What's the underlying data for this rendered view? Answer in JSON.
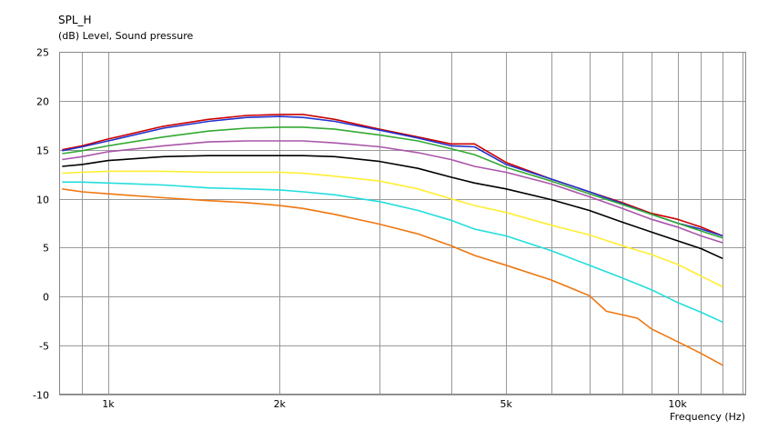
{
  "chart_data": {
    "type": "line",
    "title": "SPL_H",
    "ylabel": "(dB)  Level, Sound pressure",
    "xlabel": "Frequency  (Hz)",
    "xscale": "log",
    "xlim": [
      820,
      13200
    ],
    "ylim": [
      -10,
      25
    ],
    "grid": true,
    "y_ticks": [
      25,
      20,
      15,
      10,
      5,
      0,
      -5,
      -10
    ],
    "y_tick_labels": [
      "25",
      "20",
      "15",
      "10",
      "5",
      "0",
      "-5",
      "-10"
    ],
    "x_labeled_ticks": [
      1000,
      2000,
      5000,
      10000
    ],
    "x_tick_labels": [
      "1k",
      "2k",
      "5k",
      "10k"
    ],
    "x_gridlines": [
      900,
      1000,
      2000,
      3000,
      4000,
      5000,
      6000,
      7000,
      8000,
      9000,
      10000,
      11000,
      12000,
      13000
    ],
    "series": [
      {
        "color": "#cc0000",
        "points": [
          [
            830,
            15.0
          ],
          [
            900,
            15.4
          ],
          [
            1000,
            16.1
          ],
          [
            1250,
            17.4
          ],
          [
            1500,
            18.1
          ],
          [
            1750,
            18.5
          ],
          [
            2000,
            18.6
          ],
          [
            2200,
            18.6
          ],
          [
            2500,
            18.1
          ],
          [
            3000,
            17.1
          ],
          [
            3500,
            16.3
          ],
          [
            4000,
            15.6
          ],
          [
            4400,
            15.6
          ],
          [
            5000,
            13.7
          ],
          [
            6000,
            12.0
          ],
          [
            7000,
            10.7
          ],
          [
            8000,
            9.6
          ],
          [
            9000,
            8.5
          ],
          [
            10000,
            7.9
          ],
          [
            11000,
            7.1
          ],
          [
            12000,
            6.2
          ]
        ]
      },
      {
        "color": "#2233cc",
        "points": [
          [
            830,
            14.9
          ],
          [
            900,
            15.3
          ],
          [
            1000,
            15.9
          ],
          [
            1250,
            17.2
          ],
          [
            1500,
            17.9
          ],
          [
            1750,
            18.3
          ],
          [
            2000,
            18.4
          ],
          [
            2200,
            18.3
          ],
          [
            2500,
            17.9
          ],
          [
            3000,
            17.0
          ],
          [
            3500,
            16.2
          ],
          [
            4000,
            15.4
          ],
          [
            4400,
            15.3
          ],
          [
            5000,
            13.5
          ],
          [
            6000,
            12.0
          ],
          [
            7000,
            10.7
          ],
          [
            8000,
            9.5
          ],
          [
            9000,
            8.4
          ],
          [
            10000,
            7.5
          ],
          [
            11000,
            6.9
          ],
          [
            12000,
            6.2
          ]
        ]
      },
      {
        "color": "#33aa33",
        "points": [
          [
            830,
            14.6
          ],
          [
            900,
            14.9
          ],
          [
            1000,
            15.4
          ],
          [
            1250,
            16.3
          ],
          [
            1500,
            16.9
          ],
          [
            1750,
            17.2
          ],
          [
            2000,
            17.3
          ],
          [
            2200,
            17.3
          ],
          [
            2500,
            17.1
          ],
          [
            3000,
            16.5
          ],
          [
            3500,
            15.9
          ],
          [
            4000,
            15.1
          ],
          [
            4400,
            14.5
          ],
          [
            5000,
            13.2
          ],
          [
            6000,
            11.8
          ],
          [
            7000,
            10.5
          ],
          [
            8000,
            9.4
          ],
          [
            9000,
            8.4
          ],
          [
            10000,
            7.5
          ],
          [
            11000,
            6.7
          ],
          [
            12000,
            6.0
          ]
        ]
      },
      {
        "color": "#aa55aa",
        "points": [
          [
            830,
            14.0
          ],
          [
            900,
            14.3
          ],
          [
            1000,
            14.8
          ],
          [
            1250,
            15.4
          ],
          [
            1500,
            15.8
          ],
          [
            1750,
            15.9
          ],
          [
            2000,
            15.9
          ],
          [
            2200,
            15.9
          ],
          [
            2500,
            15.7
          ],
          [
            3000,
            15.3
          ],
          [
            3500,
            14.7
          ],
          [
            4000,
            14.0
          ],
          [
            4400,
            13.3
          ],
          [
            5000,
            12.7
          ],
          [
            6000,
            11.5
          ],
          [
            7000,
            10.2
          ],
          [
            8000,
            9.0
          ],
          [
            9000,
            7.9
          ],
          [
            10000,
            7.1
          ],
          [
            11000,
            6.2
          ],
          [
            12000,
            5.5
          ]
        ]
      },
      {
        "color": "#000000",
        "points": [
          [
            830,
            13.3
          ],
          [
            900,
            13.5
          ],
          [
            1000,
            13.9
          ],
          [
            1250,
            14.3
          ],
          [
            1500,
            14.4
          ],
          [
            1750,
            14.4
          ],
          [
            2000,
            14.4
          ],
          [
            2200,
            14.4
          ],
          [
            2500,
            14.3
          ],
          [
            3000,
            13.8
          ],
          [
            3500,
            13.1
          ],
          [
            4000,
            12.2
          ],
          [
            4400,
            11.6
          ],
          [
            5000,
            11.0
          ],
          [
            6000,
            9.9
          ],
          [
            7000,
            8.8
          ],
          [
            8000,
            7.6
          ],
          [
            9000,
            6.6
          ],
          [
            10000,
            5.7
          ],
          [
            11000,
            4.9
          ],
          [
            12000,
            3.9
          ]
        ]
      },
      {
        "color": "#ffee33",
        "points": [
          [
            830,
            12.6
          ],
          [
            900,
            12.7
          ],
          [
            1000,
            12.8
          ],
          [
            1250,
            12.8
          ],
          [
            1500,
            12.7
          ],
          [
            1750,
            12.7
          ],
          [
            2000,
            12.7
          ],
          [
            2200,
            12.6
          ],
          [
            2500,
            12.3
          ],
          [
            3000,
            11.8
          ],
          [
            3500,
            11.0
          ],
          [
            4000,
            10.0
          ],
          [
            4400,
            9.3
          ],
          [
            5000,
            8.6
          ],
          [
            6000,
            7.3
          ],
          [
            7000,
            6.3
          ],
          [
            8000,
            5.2
          ],
          [
            9000,
            4.3
          ],
          [
            10000,
            3.3
          ],
          [
            11000,
            2.1
          ],
          [
            12000,
            1.0
          ]
        ]
      },
      {
        "color": "#22dddd",
        "points": [
          [
            830,
            11.7
          ],
          [
            900,
            11.7
          ],
          [
            1000,
            11.6
          ],
          [
            1250,
            11.4
          ],
          [
            1500,
            11.1
          ],
          [
            1750,
            11.0
          ],
          [
            2000,
            10.9
          ],
          [
            2200,
            10.7
          ],
          [
            2500,
            10.4
          ],
          [
            3000,
            9.7
          ],
          [
            3500,
            8.8
          ],
          [
            4000,
            7.8
          ],
          [
            4400,
            6.9
          ],
          [
            5000,
            6.2
          ],
          [
            6000,
            4.7
          ],
          [
            7000,
            3.2
          ],
          [
            8000,
            1.9
          ],
          [
            9000,
            0.7
          ],
          [
            10000,
            -0.6
          ],
          [
            11000,
            -1.6
          ],
          [
            12000,
            -2.6
          ]
        ]
      },
      {
        "color": "#ee7711",
        "points": [
          [
            830,
            11.0
          ],
          [
            900,
            10.7
          ],
          [
            1000,
            10.5
          ],
          [
            1250,
            10.1
          ],
          [
            1500,
            9.8
          ],
          [
            1750,
            9.6
          ],
          [
            2000,
            9.3
          ],
          [
            2200,
            9.0
          ],
          [
            2500,
            8.4
          ],
          [
            3000,
            7.4
          ],
          [
            3500,
            6.4
          ],
          [
            4000,
            5.2
          ],
          [
            4400,
            4.2
          ],
          [
            5000,
            3.2
          ],
          [
            6000,
            1.7
          ],
          [
            7000,
            0.1
          ],
          [
            7500,
            -1.5
          ],
          [
            8500,
            -2.2
          ],
          [
            9000,
            -3.3
          ],
          [
            10000,
            -4.6
          ],
          [
            11000,
            -5.8
          ],
          [
            12000,
            -7.0
          ]
        ]
      }
    ]
  }
}
